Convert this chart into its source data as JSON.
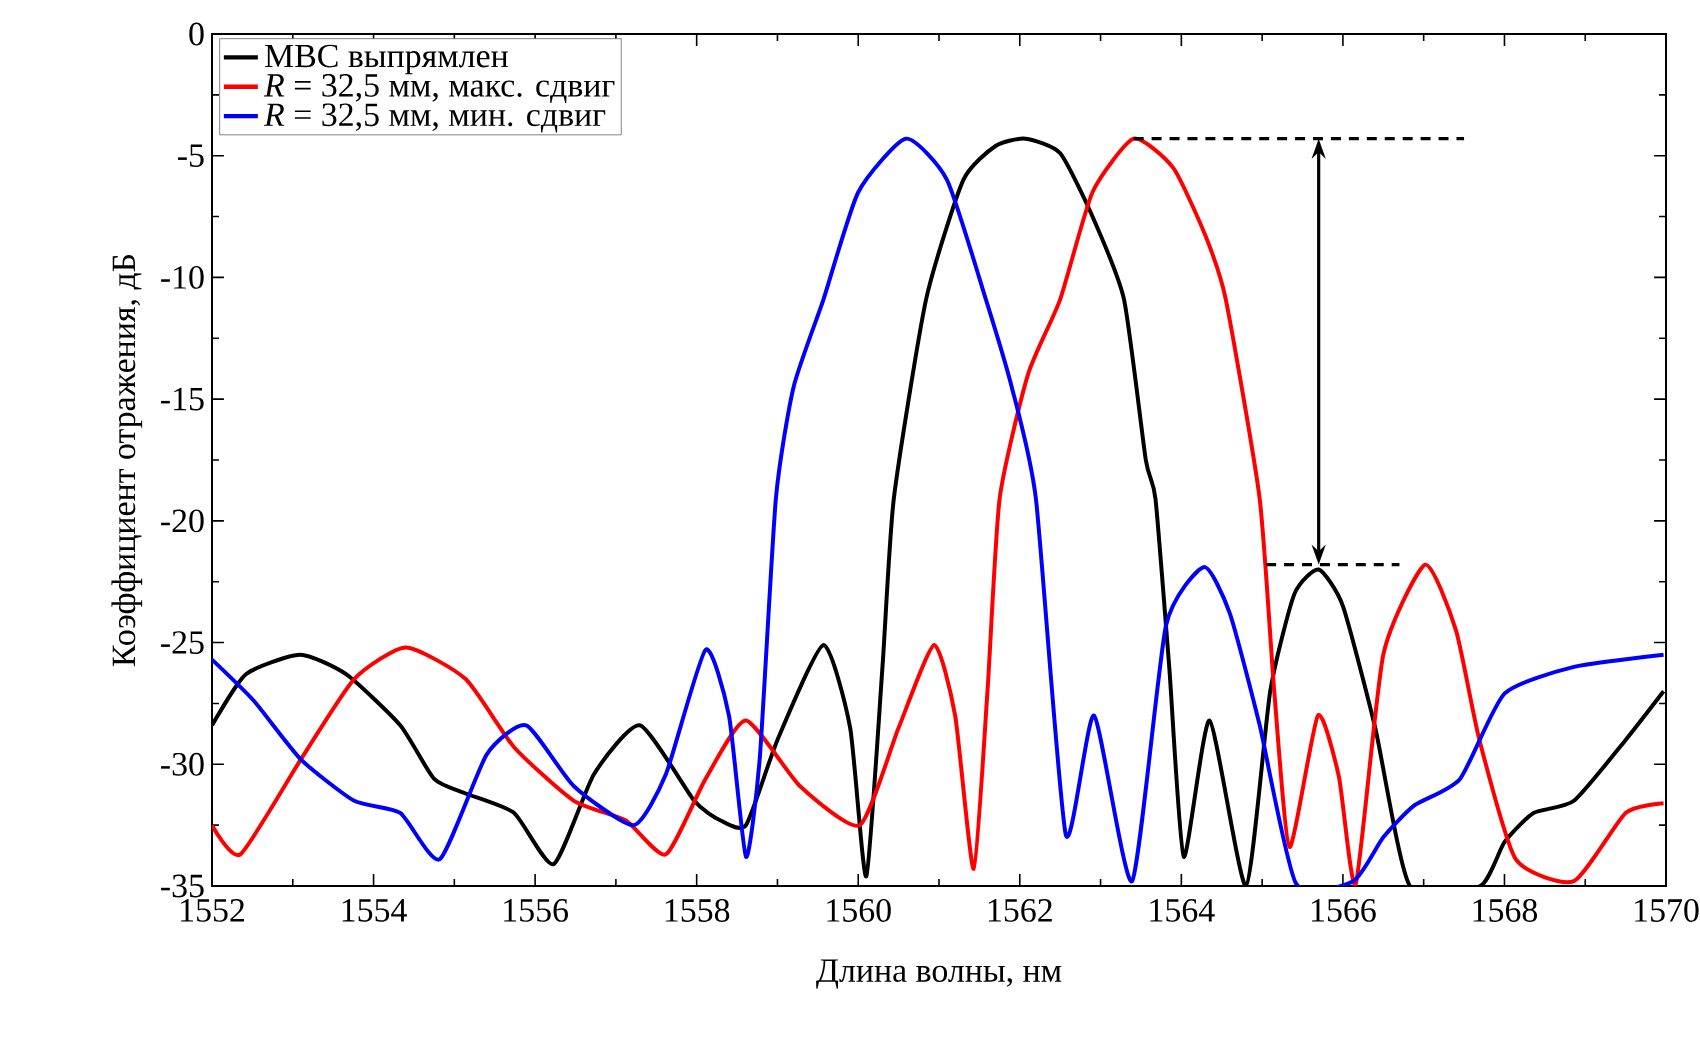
{
  "chart_data": {
    "type": "line",
    "xlabel": "Длина волны, нм",
    "ylabel": "Коэффициент отражения, дБ",
    "xlim": [
      1552,
      1570
    ],
    "ylim": [
      -35,
      0
    ],
    "xticks": [
      1552,
      1554,
      1556,
      1558,
      1560,
      1562,
      1564,
      1566,
      1568,
      1570
    ],
    "yticks": [
      -35,
      -30,
      -25,
      -20,
      -15,
      -10,
      -5,
      0
    ],
    "legend": "top left",
    "grid": false,
    "marker": "none",
    "line_style": "solid",
    "series": [
      {
        "name": "МВС выпрямлен",
        "color": "#000000",
        "x": [
          1552,
          1552.42,
          1553.09,
          1553.66,
          1554.33,
          1554.75,
          1555.14,
          1555.74,
          1556.23,
          1556.73,
          1557.3,
          1557.97,
          1558.29,
          1558.61,
          1559.0,
          1559.57,
          1559.9,
          1560.1,
          1560.3,
          1560.44,
          1560.84,
          1561.3,
          1561.7,
          1562.07,
          1562.5,
          1562.9,
          1563.29,
          1563.56,
          1563.68,
          1563.85,
          1564.03,
          1564.35,
          1564.8,
          1565.1,
          1565.4,
          1565.7,
          1566.0,
          1566.4,
          1566.83,
          1567.7,
          1568.0,
          1568.36,
          1568.86,
          1569.5,
          1569.97
        ],
        "values": [
          -28.4,
          -26.3,
          -25.5,
          -26.3,
          -28.4,
          -30.6,
          -31.2,
          -32.0,
          -34.1,
          -30.4,
          -28.4,
          -31.5,
          -32.3,
          -32.5,
          -29.0,
          -25.1,
          -28.5,
          -34.6,
          -26.0,
          -19.1,
          -10.9,
          -6.0,
          -4.6,
          -4.3,
          -4.9,
          -7.5,
          -10.9,
          -17.5,
          -19.1,
          -26.0,
          -33.8,
          -28.2,
          -35.0,
          -27.0,
          -23.0,
          -22.0,
          -23.5,
          -28.5,
          -35.0,
          -35.0,
          -33.2,
          -32.0,
          -31.5,
          -29.0,
          -27.0
        ]
      },
      {
        "name": "*R* = 32,5 мм, макс. сдвиг",
        "color": "#ff0000",
        "x": [
          1552,
          1552.35,
          1553.1,
          1553.76,
          1554.4,
          1555.14,
          1555.74,
          1556.48,
          1557.12,
          1557.62,
          1558.11,
          1558.61,
          1559.28,
          1560.02,
          1560.5,
          1560.94,
          1561.2,
          1561.43,
          1561.6,
          1561.75,
          1562.1,
          1562.5,
          1562.9,
          1563.41,
          1563.9,
          1564.3,
          1564.55,
          1564.97,
          1565.15,
          1565.34,
          1565.69,
          1565.95,
          1566.16,
          1566.5,
          1567.02,
          1567.4,
          1567.69,
          1568.14,
          1568.86,
          1569.5,
          1569.97
        ],
        "values": [
          -32.5,
          -33.7,
          -29.8,
          -26.5,
          -25.2,
          -26.5,
          -29.3,
          -31.5,
          -32.3,
          -33.7,
          -30.6,
          -28.2,
          -30.9,
          -32.5,
          -28.5,
          -25.1,
          -28.0,
          -34.3,
          -27.0,
          -19.1,
          -14.0,
          -10.9,
          -6.5,
          -4.3,
          -5.5,
          -8.3,
          -10.9,
          -19.1,
          -27.0,
          -33.4,
          -28.0,
          -30.5,
          -34.9,
          -25.5,
          -21.8,
          -24.5,
          -29.0,
          -33.9,
          -34.8,
          -32.0,
          -31.6
        ]
      },
      {
        "name": "*R* = 32,5 мм, мин. сдвиг",
        "color": "#0000ff",
        "x": [
          1552,
          1552.52,
          1553.1,
          1553.76,
          1554.33,
          1554.82,
          1555.4,
          1555.89,
          1556.48,
          1557.22,
          1557.62,
          1558.11,
          1558.4,
          1558.61,
          1558.78,
          1558.98,
          1559.2,
          1559.57,
          1560.0,
          1560.59,
          1561.1,
          1561.58,
          1561.9,
          1562.2,
          1562.57,
          1562.92,
          1563.39,
          1563.81,
          1564.28,
          1564.6,
          1564.97,
          1565.42,
          1566.13,
          1566.5,
          1566.88,
          1567.45,
          1568.0,
          1568.86,
          1569.97
        ],
        "values": [
          -25.7,
          -27.4,
          -29.8,
          -31.5,
          -32.0,
          -33.9,
          -29.6,
          -28.4,
          -30.9,
          -32.5,
          -30.4,
          -25.3,
          -28.0,
          -33.8,
          -29.8,
          -19.1,
          -14.5,
          -10.9,
          -6.5,
          -4.3,
          -6.0,
          -10.9,
          -14.5,
          -19.1,
          -32.9,
          -28.0,
          -34.8,
          -24.3,
          -21.9,
          -23.8,
          -28.4,
          -34.9,
          -34.8,
          -33.0,
          -31.7,
          -30.6,
          -27.1,
          -26.0,
          -25.5
        ]
      },
      {
        "color": "#000000",
        "line_style": "dashed",
        "x": [
          1563.41,
          1567.5
        ],
        "values": [
          -4.3,
          -4.3
        ]
      },
      {
        "color": "#000000",
        "line_style": "dashed",
        "x": [
          1565.05,
          1566.7
        ],
        "values": [
          -21.8,
          -21.8
        ]
      }
    ]
  }
}
